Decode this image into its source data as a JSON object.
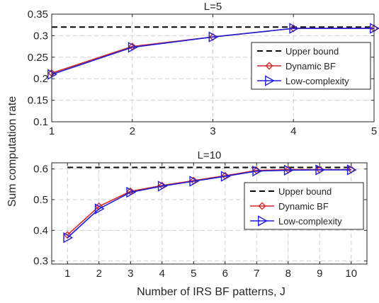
{
  "figure": {
    "ylabel": "Sum computation rate",
    "xlabel": "Number of IRS BF patterns, J"
  },
  "chart_data": [
    {
      "type": "line",
      "title": "L=5",
      "x": [
        1,
        2,
        3,
        4,
        5
      ],
      "xlim": [
        1,
        5
      ],
      "ylim": [
        0.1,
        0.35
      ],
      "xticks": [
        "1",
        "2",
        "3",
        "4",
        "5"
      ],
      "yticks": [
        "0.1",
        "0.15",
        "0.2",
        "0.25",
        "0.3",
        "0.35"
      ],
      "grid": true,
      "legend_position": "right",
      "series": [
        {
          "name": "Upper bound",
          "values": [
            0.32,
            0.32,
            0.32,
            0.32,
            0.32
          ],
          "color": "#000000",
          "style": "dashed"
        },
        {
          "name": "Dynamic BF",
          "values": [
            0.213,
            0.275,
            0.297,
            0.317,
            0.317
          ],
          "color": "#d62728",
          "marker": "diamond"
        },
        {
          "name": "Low-complexity",
          "values": [
            0.21,
            0.273,
            0.297,
            0.317,
            0.317
          ],
          "color": "#1f1fd6",
          "marker": "triangle-right"
        }
      ]
    },
    {
      "type": "line",
      "title": "L=10",
      "x": [
        1,
        2,
        3,
        4,
        5,
        6,
        7,
        8,
        9,
        10
      ],
      "xlim": [
        0.5,
        10.5
      ],
      "ylim": [
        0.29,
        0.62
      ],
      "xticks": [
        "1",
        "2",
        "3",
        "4",
        "5",
        "6",
        "7",
        "8",
        "9",
        "10"
      ],
      "yticks": [
        "0.3",
        "0.4",
        "0.5",
        "0.6"
      ],
      "grid": true,
      "legend_position": "right",
      "series": [
        {
          "name": "Upper bound",
          "values": [
            0.605,
            0.605,
            0.605,
            0.605,
            0.605,
            0.605,
            0.605,
            0.605,
            0.605,
            0.605
          ],
          "color": "#000000",
          "style": "dashed"
        },
        {
          "name": "Dynamic BF",
          "values": [
            0.385,
            0.478,
            0.527,
            0.546,
            0.562,
            0.578,
            0.595,
            0.598,
            0.598,
            0.598
          ],
          "color": "#d62728",
          "marker": "diamond"
        },
        {
          "name": "Low-complexity",
          "values": [
            0.376,
            0.47,
            0.524,
            0.544,
            0.56,
            0.576,
            0.593,
            0.596,
            0.597,
            0.597
          ],
          "color": "#1f1fd6",
          "marker": "triangle-right"
        }
      ]
    }
  ]
}
